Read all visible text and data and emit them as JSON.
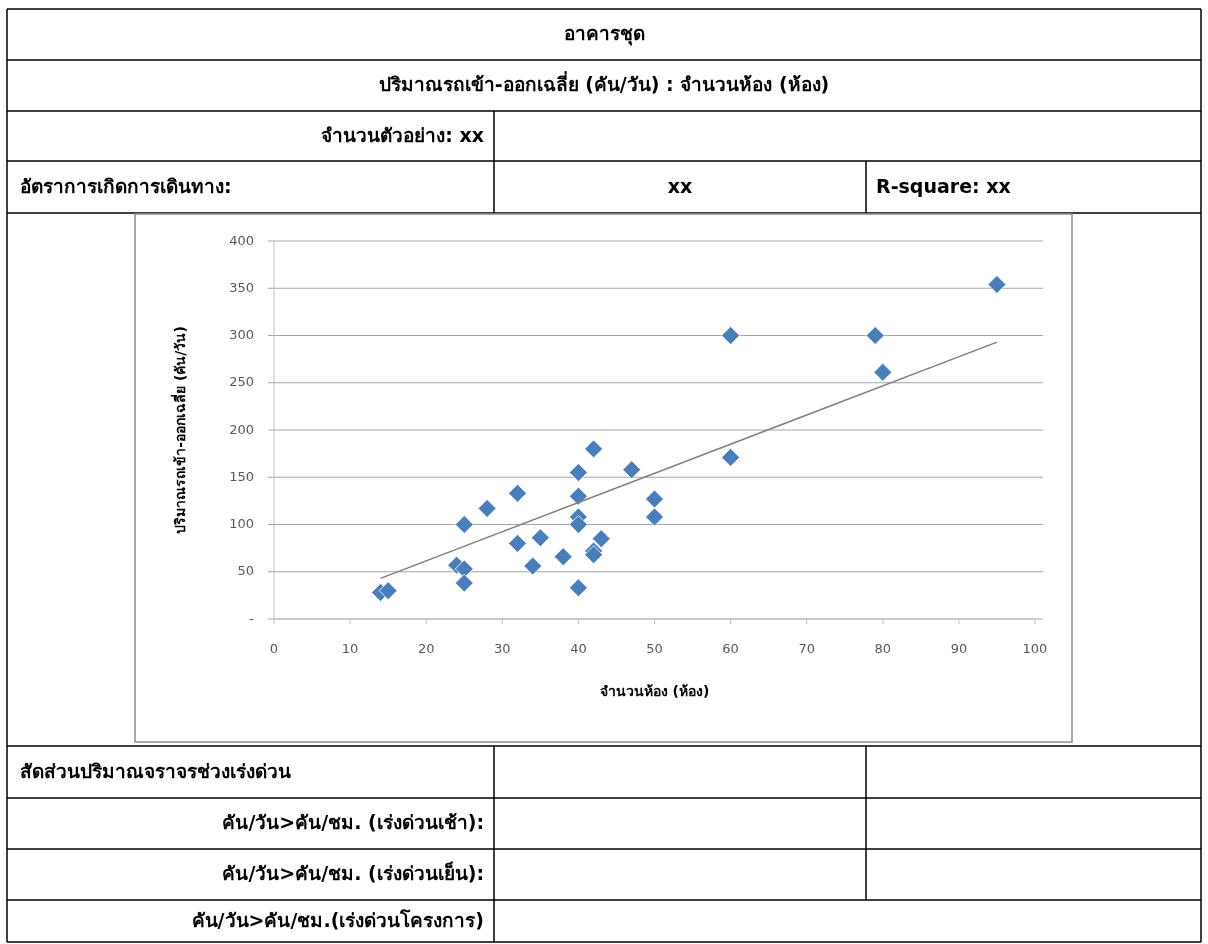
{
  "chart_data": {
    "type": "scatter",
    "title": "อาคารชุด",
    "subtitle": "ปริมาณรถเข้า-ออกเฉลี่ย (คัน/วัน) : จำนวนห้อง (ห้อง)",
    "xlabel": "จำนวนห้อง (ห้อง)",
    "ylabel": "ปริมาณรถเข้า-ออกเฉลี่ย (คัน/วัน)",
    "annotations": [
      "จำนวนตัวอย่าง: xx",
      "อัตราการเกิดการเดินทาง:",
      "xx",
      "R-square: xx",
      "สัดส่วนปริมาณจราจรช่วงเร่งด่วน",
      "คัน/วัน>คัน/ชม. (เร่งด่วนเช้า):",
      "คัน/วัน>คัน/ชม. (เร่งด่วนเย็น):",
      "คัน/วัน>คัน/ชม.(เร่งด่วนโครงการ)"
    ],
    "xlim": [
      0,
      100
    ],
    "xticks": [
      0,
      10,
      20,
      30,
      40,
      50,
      60,
      70,
      80,
      90,
      100
    ],
    "ylim": [
      0,
      400
    ],
    "yticks": [
      {
        "value": 0,
        "label": "-"
      },
      50,
      100,
      150,
      200,
      250,
      300,
      350,
      400
    ],
    "grid": "y",
    "marker": "diamond",
    "series": [
      {
        "color": "#4a7ebb",
        "x": [
          14,
          15,
          24,
          25,
          25,
          25,
          28,
          32,
          32,
          34,
          35,
          38,
          40,
          40,
          40,
          40,
          40,
          42,
          42,
          42,
          43,
          47,
          50,
          50,
          60,
          60,
          79,
          80,
          95
        ],
        "values": [
          28,
          30,
          57,
          53,
          38,
          100,
          117,
          133,
          80,
          56,
          86,
          66,
          155,
          130,
          108,
          100,
          33,
          180,
          72,
          68,
          85,
          158,
          127,
          108,
          300,
          171,
          300,
          261,
          354
        ]
      },
      {
        "type": "line",
        "marker": "none",
        "color": "#7f7f7f",
        "x": [
          14,
          95
        ],
        "values": [
          43,
          293
        ]
      }
    ]
  }
}
